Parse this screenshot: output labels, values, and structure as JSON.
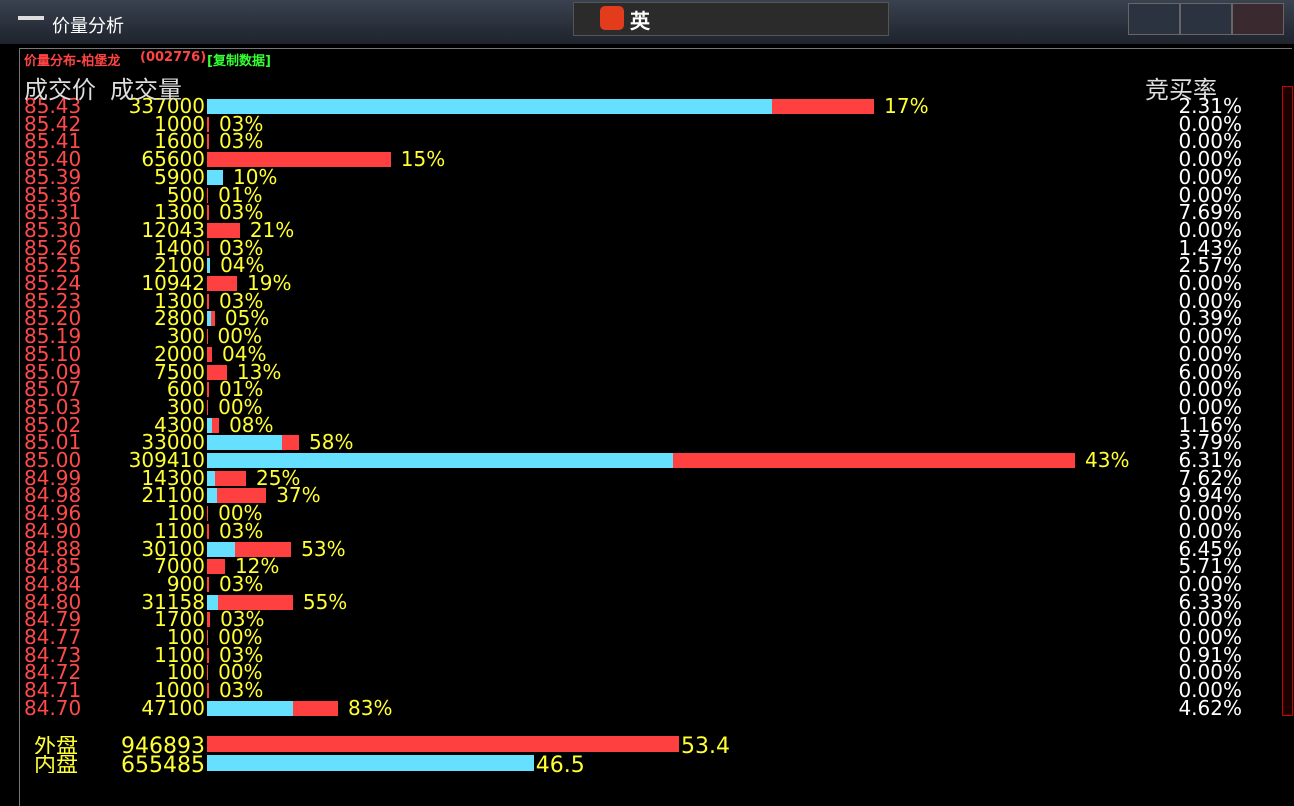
{
  "window": {
    "title": "价量分析",
    "ime_mode": "英"
  },
  "panel": {
    "title": "价量分布-柏堡龙",
    "code": "(002776)",
    "copy": "[复制数据]",
    "headers": [
      "成交价",
      "成交量",
      "竞买率"
    ]
  },
  "chart_data": {
    "type": "bar",
    "categories": [
      "85.43",
      "85.42",
      "85.41",
      "85.40",
      "85.39",
      "85.36",
      "85.31",
      "85.30",
      "85.26",
      "85.25",
      "85.24",
      "85.23",
      "85.20",
      "85.19",
      "85.10",
      "85.09",
      "85.07",
      "85.03",
      "85.02",
      "85.01",
      "85.00",
      "84.99",
      "84.98",
      "84.96",
      "84.90",
      "84.88",
      "84.85",
      "84.84",
      "84.80",
      "84.79",
      "84.77",
      "84.73",
      "84.72",
      "84.71",
      "84.70"
    ],
    "volumes": [
      337000,
      1000,
      1600,
      65600,
      5900,
      500,
      1300,
      12043,
      1400,
      2100,
      10942,
      1300,
      2800,
      300,
      2000,
      7500,
      600,
      300,
      4300,
      33000,
      309410,
      14300,
      21100,
      100,
      1100,
      30100,
      7000,
      900,
      31158,
      1700,
      100,
      1100,
      100,
      1000,
      47100
    ],
    "pct_labels": [
      "17%",
      "03%",
      "03%",
      "15%",
      "10%",
      "01%",
      "03%",
      "21%",
      "03%",
      "04%",
      "19%",
      "03%",
      "05%",
      "00%",
      "04%",
      "13%",
      "01%",
      "00%",
      "08%",
      "58%",
      "43%",
      "25%",
      "37%",
      "00%",
      "03%",
      "53%",
      "12%",
      "03%",
      "55%",
      "03%",
      "00%",
      "03%",
      "00%",
      "03%",
      "83%"
    ],
    "buy_rates": [
      "2.31%",
      "0.00%",
      "0.00%",
      "0.00%",
      "0.00%",
      "0.00%",
      "7.69%",
      "0.00%",
      "1.43%",
      "2.57%",
      "0.00%",
      "0.00%",
      "0.39%",
      "0.00%",
      "0.00%",
      "6.00%",
      "0.00%",
      "0.00%",
      "1.16%",
      "3.79%",
      "6.31%",
      "7.62%",
      "9.94%",
      "0.00%",
      "0.00%",
      "6.45%",
      "5.71%",
      "0.00%",
      "6.33%",
      "0.00%",
      "0.00%",
      "0.91%",
      "0.00%",
      "0.00%",
      "4.62%"
    ],
    "series": [
      {
        "color": "#66e0ff",
        "values": [
          201500,
          0,
          0,
          0,
          5700,
          0,
          0,
          0,
          0,
          1100,
          0,
          0,
          1400,
          0,
          0,
          0,
          0,
          0,
          1800,
          26700,
          166100,
          2800,
          3600,
          0,
          0,
          10000,
          0,
          0,
          3900,
          0,
          0,
          0,
          0,
          0,
          30700
        ]
      },
      {
        "color": "#ff4040",
        "values": [
          36300,
          700,
          700,
          65500,
          0,
          400,
          700,
          11700,
          700,
          0,
          10700,
          700,
          1400,
          200,
          1800,
          7100,
          700,
          400,
          2500,
          6100,
          143300,
          11100,
          17500,
          400,
          700,
          20000,
          6400,
          700,
          26700,
          1100,
          400,
          700,
          400,
          700,
          16000
        ]
      }
    ],
    "summary": [
      {
        "name": "外盘",
        "value": 946893,
        "pct": "53.4",
        "color": "#ff4040"
      },
      {
        "name": "内盘",
        "value": 655485,
        "pct": "46.5",
        "color": "#66e0ff"
      }
    ]
  }
}
